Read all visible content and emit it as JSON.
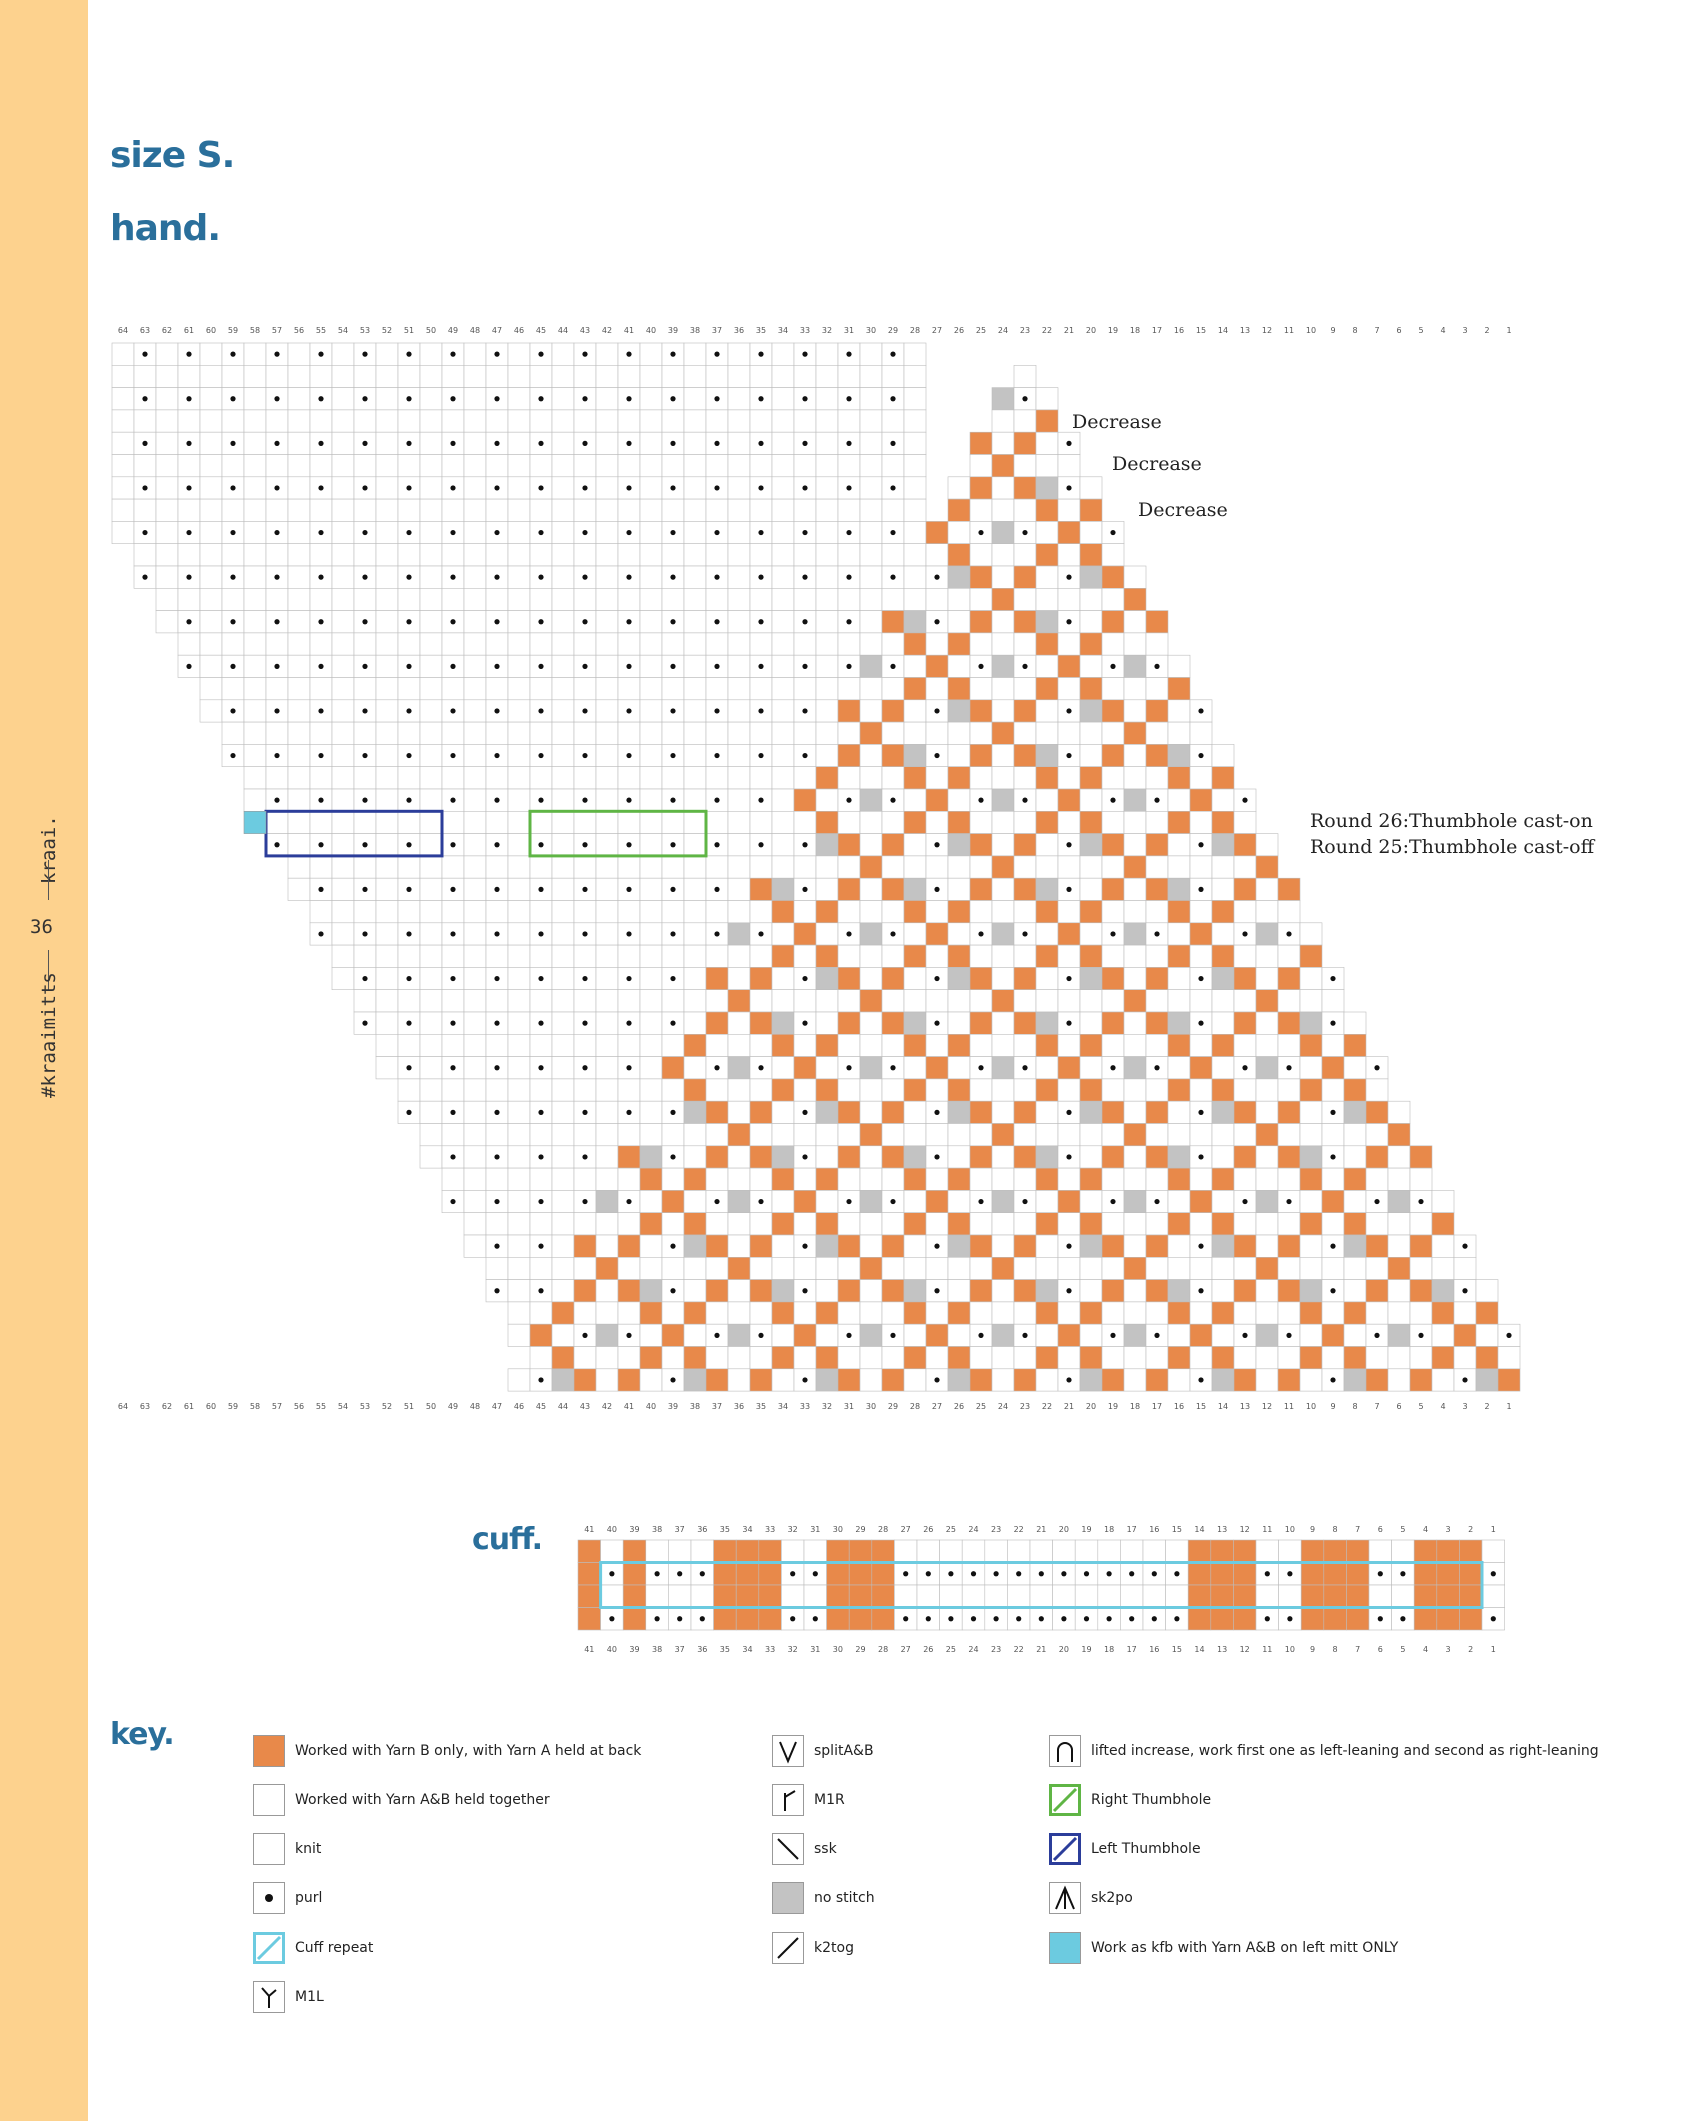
{
  "sidebar": {
    "brand": "kraai.",
    "page_number": "36",
    "hashtag": "#kraaimitts"
  },
  "headings": {
    "size": "size S.",
    "hand": "hand.",
    "cuff": "cuff.",
    "key": "key."
  },
  "hand_chart": {
    "columns": 64,
    "rows": 47,
    "annotations": [
      {
        "round": 44,
        "text": "Decrease"
      },
      {
        "round": 42,
        "text": "Decrease"
      },
      {
        "round": 40,
        "text": "Decrease"
      },
      {
        "round": 26,
        "text": "Round 26:Thumbhole cast-on"
      },
      {
        "round": 25,
        "text": "Round 25:Thumbhole cast-off"
      }
    ]
  },
  "cuff_chart": {
    "columns": 41,
    "rows": 4
  },
  "key": {
    "items": [
      {
        "icon": "orange-square-icon",
        "label": "Worked with Yarn B only, with Yarn A held at back"
      },
      {
        "icon": "white-square-icon",
        "label": "Worked with Yarn A&B held together"
      },
      {
        "icon": "knit-icon",
        "label": "knit"
      },
      {
        "icon": "purl-dot-icon",
        "label": "purl"
      },
      {
        "icon": "cuff-repeat-icon",
        "label": "Cuff repeat"
      },
      {
        "icon": "m1l-icon",
        "label": "M1L"
      },
      {
        "icon": "split-v-icon",
        "label": "splitA&B"
      },
      {
        "icon": "m1r-icon",
        "label": "M1R"
      },
      {
        "icon": "ssk-icon",
        "label": "ssk"
      },
      {
        "icon": "no-stitch-icon",
        "label": "no stitch"
      },
      {
        "icon": "k2tog-icon",
        "label": "k2tog"
      },
      {
        "icon": "lifted-increase-icon",
        "label": "lifted increase, work first one as left-leaning and second as right-leaning"
      },
      {
        "icon": "right-thumbhole-icon",
        "label": "Right Thumbhole"
      },
      {
        "icon": "left-thumbhole-icon",
        "label": "Left Thumbhole"
      },
      {
        "icon": "sk2po-icon",
        "label": "sk2po"
      },
      {
        "icon": "kfb-cyan-icon",
        "label": "Work as kfb with Yarn A&B on left mitt ONLY"
      }
    ]
  },
  "colors": {
    "orange": "#e8894a",
    "grey": "#c3c3c3",
    "cyan": "#6ccbe0",
    "blue": "#2b3d9a",
    "green": "#5fb545",
    "heading": "#2a6f9b",
    "sidebar": "#fdd28e"
  }
}
